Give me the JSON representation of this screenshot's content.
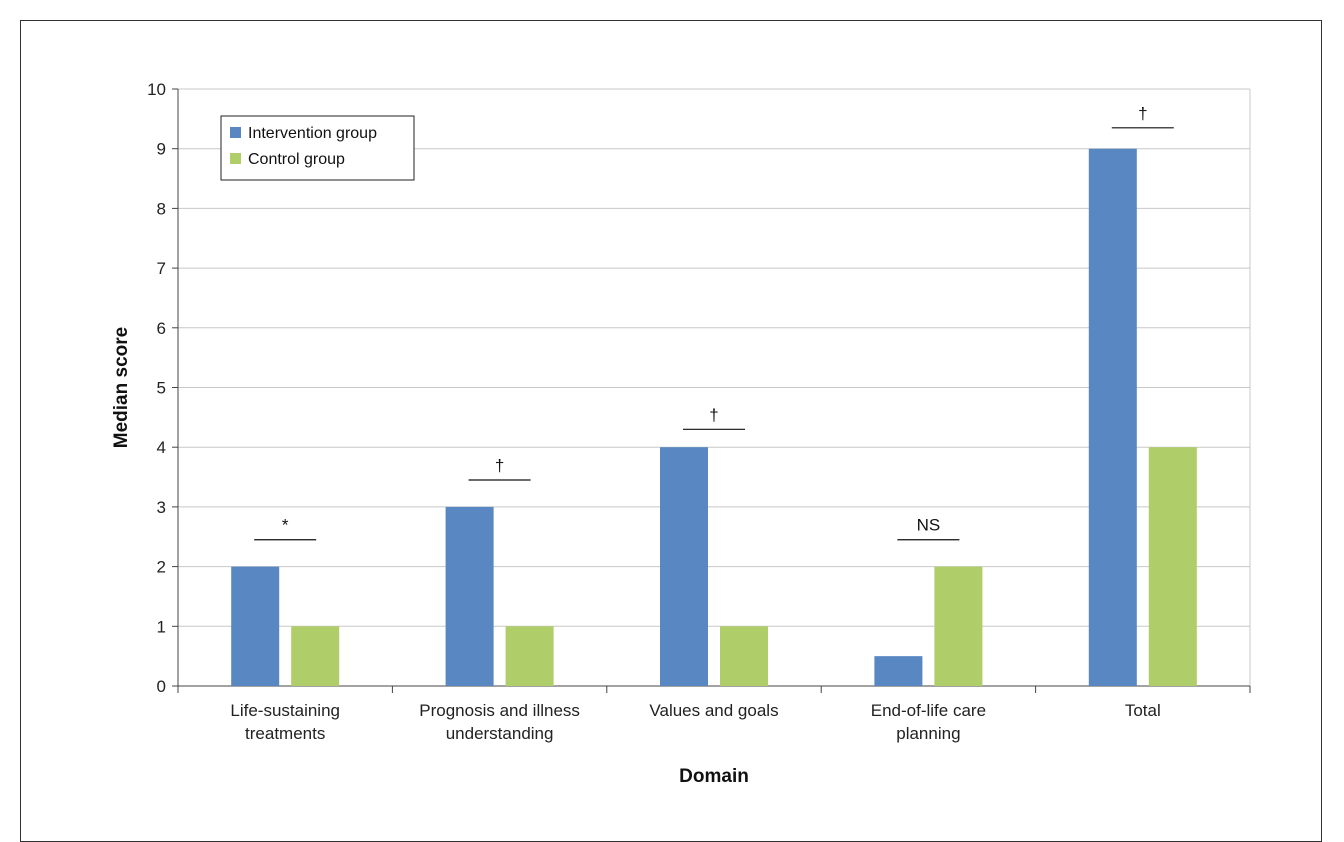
{
  "chart_data": {
    "type": "bar",
    "title": "",
    "xlabel": "Domain",
    "ylabel": "Median score",
    "ylim": [
      0,
      10
    ],
    "yticks": [
      "0",
      "1",
      "2",
      "3",
      "4",
      "5",
      "6",
      "7",
      "8",
      "9",
      "10"
    ],
    "grid": true,
    "legend_position": "top-left",
    "categories": [
      [
        "Life-sustaining",
        "treatments"
      ],
      [
        "Prognosis and illness",
        "understanding"
      ],
      [
        "Values and goals"
      ],
      [
        "End-of-life care",
        "planning"
      ],
      [
        "Total"
      ]
    ],
    "series": [
      {
        "name": "Intervention group",
        "color": "#5887c1",
        "values": [
          2,
          3,
          4,
          0.5,
          9
        ]
      },
      {
        "name": "Control group",
        "color": "#afcd68",
        "values": [
          1,
          1,
          1,
          2,
          4
        ]
      }
    ],
    "significance": [
      {
        "label": "*",
        "level": 2.45
      },
      {
        "label": "†",
        "level": 3.45
      },
      {
        "label": "†",
        "level": 4.3
      },
      {
        "label": "NS",
        "level": 2.45
      },
      {
        "label": "†",
        "level": 9.35
      }
    ]
  }
}
